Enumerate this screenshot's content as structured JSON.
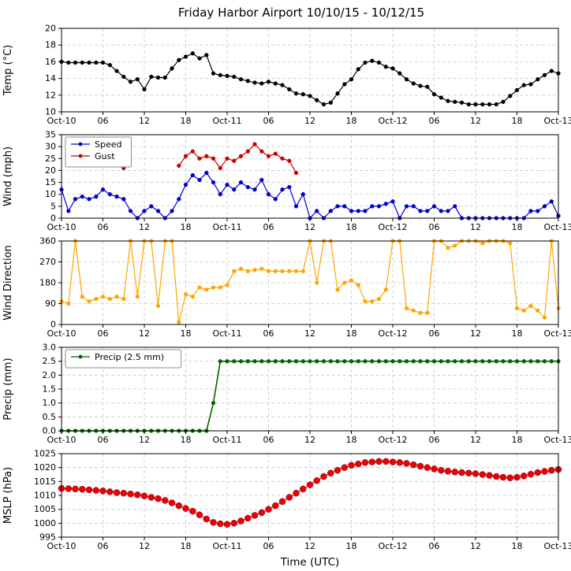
{
  "title": "Friday Harbor Airport 10/10/15 - 10/12/15",
  "xlabel": "Time (UTC)",
  "x_axis": {
    "label": "Time (UTC)",
    "tick_labels": [
      "Oct-10",
      "06",
      "12",
      "18",
      "Oct-11",
      "06",
      "12",
      "18",
      "Oct-12",
      "06",
      "12",
      "18",
      "Oct-13"
    ],
    "tick_hours": [
      0,
      6,
      12,
      18,
      24,
      30,
      36,
      42,
      48,
      54,
      60,
      66,
      72
    ],
    "hours_start": 0,
    "hours_end": 72,
    "step_hours": 1
  },
  "chart_data": [
    {
      "type": "line",
      "panel": "temperature",
      "ylabel": "Temp (°C)",
      "ylim": [
        10,
        20
      ],
      "ytick_values": [
        10,
        12,
        14,
        16,
        18,
        20
      ],
      "ytick_labels": [
        "10",
        "12",
        "14",
        "16",
        "18",
        "20"
      ],
      "legend": false,
      "series": [
        {
          "name": "Temp",
          "color": "#000000",
          "values": [
            16.0,
            15.9,
            15.9,
            15.9,
            15.9,
            15.9,
            15.9,
            15.6,
            14.9,
            14.2,
            13.6,
            13.9,
            12.7,
            14.2,
            14.1,
            14.1,
            15.2,
            16.2,
            16.6,
            17.0,
            16.4,
            16.8,
            14.6,
            14.4,
            14.3,
            14.2,
            13.9,
            13.7,
            13.5,
            13.4,
            13.6,
            13.4,
            13.2,
            12.7,
            12.2,
            12.1,
            11.9,
            11.4,
            10.9,
            11.1,
            12.2,
            13.3,
            13.9,
            15.1,
            15.9,
            16.1,
            15.9,
            15.4,
            15.2,
            14.6,
            13.9,
            13.4,
            13.1,
            13.0,
            12.1,
            11.7,
            11.3,
            11.2,
            11.1,
            10.9,
            10.9,
            10.9,
            10.9,
            10.9,
            11.2,
            11.9,
            12.6,
            13.2,
            13.3,
            13.9,
            14.4,
            14.9,
            14.6
          ]
        }
      ]
    },
    {
      "type": "line",
      "panel": "wind",
      "ylabel": "Wind (mph)",
      "ylim": [
        0,
        35
      ],
      "ytick_values": [
        0,
        5,
        10,
        15,
        20,
        25,
        30,
        35
      ],
      "ytick_labels": [
        "0",
        "5",
        "10",
        "15",
        "20",
        "25",
        "30",
        "35"
      ],
      "legend": true,
      "series": [
        {
          "name": "Speed",
          "color": "#0000cc",
          "values": [
            12,
            3,
            8,
            9,
            8,
            9,
            12,
            10,
            9,
            8,
            3,
            0,
            3,
            5,
            3,
            0,
            3,
            8,
            14,
            18,
            16,
            19,
            15,
            10,
            14,
            12,
            15,
            13,
            12,
            16,
            10,
            8,
            12,
            13,
            5,
            10,
            0,
            3,
            0,
            3,
            5,
            5,
            3,
            3,
            3,
            5,
            5,
            6,
            7,
            0,
            5,
            5,
            3,
            3,
            5,
            3,
            3,
            5,
            0,
            0,
            0,
            0,
            0,
            0,
            0,
            0,
            0,
            0,
            3,
            3,
            5,
            7,
            1
          ]
        },
        {
          "name": "Gust",
          "color": "#cc0000",
          "values": [
            null,
            null,
            null,
            null,
            null,
            null,
            null,
            null,
            null,
            21,
            null,
            null,
            null,
            null,
            null,
            null,
            null,
            22,
            26,
            28,
            25,
            26,
            25,
            21,
            25,
            24,
            26,
            28,
            31,
            28,
            26,
            27,
            25,
            24,
            19,
            null,
            null,
            null,
            null,
            null,
            null,
            null,
            null,
            null,
            null,
            null,
            null,
            null,
            null,
            null,
            null,
            null,
            null,
            null,
            null,
            null,
            null,
            null,
            null,
            null,
            null,
            null,
            null,
            null,
            null,
            null,
            null,
            null,
            null,
            null,
            null,
            null,
            null
          ]
        }
      ]
    },
    {
      "type": "line",
      "panel": "wind-direction",
      "ylabel": "Wind Direction",
      "ylim": [
        0,
        360
      ],
      "ytick_values": [
        0,
        90,
        180,
        270,
        360
      ],
      "ytick_labels": [
        "0",
        "90",
        "180",
        "270",
        "360"
      ],
      "legend": false,
      "series": [
        {
          "name": "Wind Direction",
          "color": "#ffa500",
          "values": [
            100,
            90,
            360,
            120,
            100,
            110,
            120,
            110,
            120,
            110,
            360,
            120,
            360,
            360,
            80,
            360,
            360,
            10,
            130,
            120,
            160,
            150,
            160,
            160,
            170,
            230,
            240,
            230,
            235,
            240,
            230,
            230,
            230,
            230,
            230,
            230,
            360,
            180,
            360,
            360,
            150,
            180,
            190,
            170,
            100,
            100,
            110,
            150,
            360,
            360,
            70,
            60,
            50,
            50,
            360,
            360,
            330,
            340,
            360,
            360,
            360,
            350,
            360,
            360,
            360,
            350,
            70,
            60,
            80,
            60,
            30,
            360,
            70
          ]
        }
      ]
    },
    {
      "type": "line",
      "panel": "precip",
      "ylabel": "Precip (mm)",
      "ylim": [
        0,
        3.0
      ],
      "ytick_values": [
        0.0,
        0.5,
        1.0,
        1.5,
        2.0,
        2.5,
        3.0
      ],
      "ytick_labels": [
        "0.0",
        "0.5",
        "1.0",
        "1.5",
        "2.0",
        "2.5",
        "3.0"
      ],
      "legend": true,
      "series": [
        {
          "name": "Precip (2.5 mm)",
          "color": "#006400",
          "line_width": 1.6,
          "values": [
            0,
            0,
            0,
            0,
            0,
            0,
            0,
            0,
            0,
            0,
            0,
            0,
            0,
            0,
            0,
            0,
            0,
            0,
            0,
            0,
            0,
            0,
            1.0,
            2.5,
            2.5,
            2.5,
            2.5,
            2.5,
            2.5,
            2.5,
            2.5,
            2.5,
            2.5,
            2.5,
            2.5,
            2.5,
            2.5,
            2.5,
            2.5,
            2.5,
            2.5,
            2.5,
            2.5,
            2.5,
            2.5,
            2.5,
            2.5,
            2.5,
            2.5,
            2.5,
            2.5,
            2.5,
            2.5,
            2.5,
            2.5,
            2.5,
            2.5,
            2.5,
            2.5,
            2.5,
            2.5,
            2.5,
            2.5,
            2.5,
            2.5,
            2.5,
            2.5,
            2.5,
            2.5,
            2.5,
            2.5,
            2.5,
            2.5
          ]
        }
      ]
    },
    {
      "type": "line",
      "panel": "mslp",
      "ylabel": "MSLP (hPa)",
      "ylim": [
        995,
        1025
      ],
      "ytick_values": [
        995,
        1000,
        1005,
        1010,
        1015,
        1020,
        1025
      ],
      "ytick_labels": [
        "995",
        "1000",
        "1005",
        "1010",
        "1015",
        "1020",
        "1025"
      ],
      "legend": false,
      "series": [
        {
          "name": "MSLP",
          "color": "#e8000b",
          "edge": "#7a0000",
          "marker_radius": 4,
          "line_width": 1.0,
          "values": [
            1012.5,
            1012.4,
            1012.3,
            1012.2,
            1012.0,
            1011.8,
            1011.6,
            1011.3,
            1011.0,
            1010.8,
            1010.5,
            1010.2,
            1009.8,
            1009.3,
            1008.8,
            1008.2,
            1007.3,
            1006.3,
            1005.3,
            1004.3,
            1003.0,
            1001.5,
            1000.3,
            999.8,
            999.6,
            1000.0,
            1000.8,
            1001.8,
            1002.8,
            1003.8,
            1005.0,
            1006.3,
            1007.8,
            1009.3,
            1010.8,
            1012.3,
            1013.8,
            1015.3,
            1016.8,
            1018.0,
            1019.0,
            1020.0,
            1020.8,
            1021.3,
            1021.8,
            1022.0,
            1022.2,
            1022.2,
            1022.0,
            1021.8,
            1021.5,
            1021.0,
            1020.5,
            1020.0,
            1019.5,
            1019.0,
            1018.7,
            1018.4,
            1018.2,
            1018.0,
            1017.8,
            1017.5,
            1017.2,
            1016.8,
            1016.5,
            1016.3,
            1016.5,
            1017.0,
            1017.6,
            1018.2,
            1018.6,
            1019.0,
            1019.3
          ]
        }
      ]
    }
  ]
}
